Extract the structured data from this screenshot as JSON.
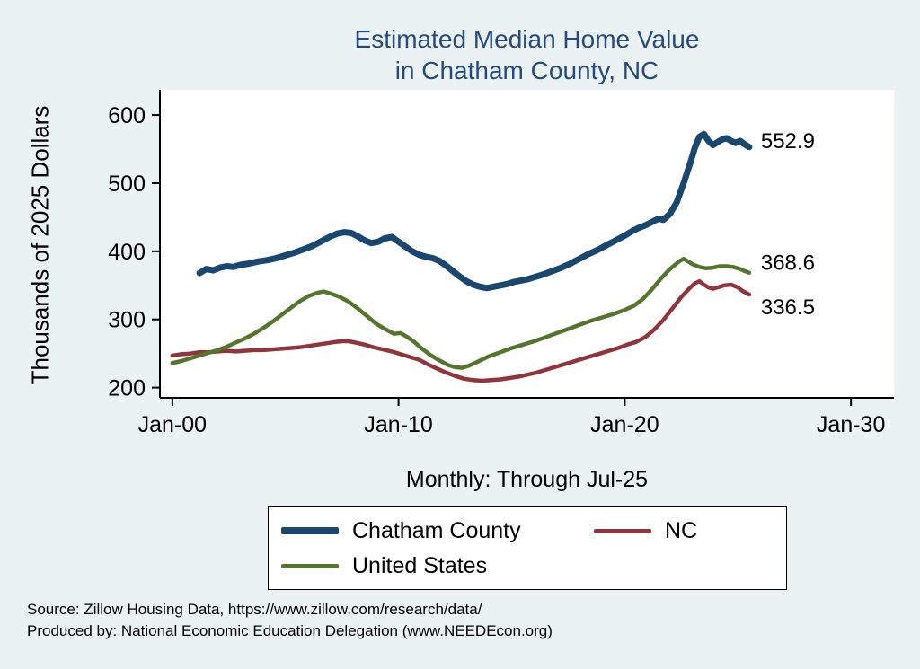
{
  "title": {
    "line1": "Estimated Median Home Value",
    "line2": "in Chatham County, NC"
  },
  "y_axis_label": "Thousands of 2025 Dollars",
  "x_axis_title": "Monthly: Through Jul-25",
  "footer": {
    "line1": "Source: Zillow Housing Data, https://www.zillow.com/research/data/",
    "line2": "Produced by: National Economic Education Delegation (www.NEEDEcon.org)"
  },
  "colors": {
    "background": "#eaf2f3",
    "plot_background": "#ffffff",
    "title": "#26497e",
    "text": "#000000",
    "chatham": "#1a476f",
    "nc": "#90353b",
    "us": "#55752f"
  },
  "legend": {
    "entries": [
      {
        "label": "Chatham County",
        "color_key": "chatham",
        "thickness": 8
      },
      {
        "label": "NC",
        "color_key": "nc",
        "thickness": 5
      },
      {
        "label": "United States",
        "color_key": "us",
        "thickness": 5
      }
    ]
  },
  "chart_data": {
    "type": "line",
    "title": "Estimated Median Home Value in Chatham County, NC",
    "xlabel": "Monthly: Through Jul-25",
    "ylabel": "Thousands of 2025 Dollars",
    "xlim": [
      1999.45,
      2031.9
    ],
    "ylim": [
      185,
      637
    ],
    "grid": false,
    "legend_position": "bottom",
    "y_ticks": [
      200,
      300,
      400,
      500,
      600
    ],
    "x_ticks": [
      {
        "value": 2000,
        "label": "Jan-00"
      },
      {
        "value": 2010,
        "label": "Jan-10"
      },
      {
        "value": 2020,
        "label": "Jan-20"
      },
      {
        "value": 2030,
        "label": "Jan-30"
      }
    ],
    "series": [
      {
        "name": "Chatham County",
        "color_key": "chatham",
        "line_width": 7,
        "end_label": "552.9",
        "end_label_dy": 1,
        "points": [
          [
            2001.2,
            368
          ],
          [
            2001.5,
            374
          ],
          [
            2001.8,
            372
          ],
          [
            2002.1,
            376
          ],
          [
            2002.4,
            378
          ],
          [
            2002.7,
            377
          ],
          [
            2003.0,
            380
          ],
          [
            2003.4,
            382
          ],
          [
            2003.8,
            385
          ],
          [
            2004.2,
            387
          ],
          [
            2004.6,
            390
          ],
          [
            2005.0,
            394
          ],
          [
            2005.4,
            398
          ],
          [
            2005.8,
            403
          ],
          [
            2006.2,
            408
          ],
          [
            2006.6,
            415
          ],
          [
            2007.0,
            422
          ],
          [
            2007.3,
            426
          ],
          [
            2007.6,
            428
          ],
          [
            2007.9,
            427
          ],
          [
            2008.2,
            422
          ],
          [
            2008.5,
            416
          ],
          [
            2008.8,
            412
          ],
          [
            2009.1,
            414
          ],
          [
            2009.4,
            419
          ],
          [
            2009.7,
            421
          ],
          [
            2010.0,
            414
          ],
          [
            2010.3,
            407
          ],
          [
            2010.6,
            400
          ],
          [
            2010.9,
            395
          ],
          [
            2011.2,
            392
          ],
          [
            2011.5,
            390
          ],
          [
            2011.8,
            386
          ],
          [
            2012.1,
            379
          ],
          [
            2012.4,
            371
          ],
          [
            2012.7,
            363
          ],
          [
            2013.0,
            356
          ],
          [
            2013.3,
            351
          ],
          [
            2013.6,
            348
          ],
          [
            2013.9,
            346
          ],
          [
            2014.2,
            348
          ],
          [
            2014.5,
            350
          ],
          [
            2014.8,
            352
          ],
          [
            2015.1,
            355
          ],
          [
            2015.4,
            357
          ],
          [
            2015.7,
            359
          ],
          [
            2016.0,
            362
          ],
          [
            2016.4,
            366
          ],
          [
            2016.8,
            371
          ],
          [
            2017.2,
            376
          ],
          [
            2017.6,
            382
          ],
          [
            2018.0,
            389
          ],
          [
            2018.4,
            396
          ],
          [
            2018.8,
            402
          ],
          [
            2019.2,
            409
          ],
          [
            2019.6,
            416
          ],
          [
            2020.0,
            423
          ],
          [
            2020.3,
            429
          ],
          [
            2020.6,
            434
          ],
          [
            2020.9,
            438
          ],
          [
            2021.2,
            443
          ],
          [
            2021.5,
            448
          ],
          [
            2021.7,
            446
          ],
          [
            2022.0,
            455
          ],
          [
            2022.3,
            472
          ],
          [
            2022.6,
            500
          ],
          [
            2022.9,
            530
          ],
          [
            2023.1,
            552
          ],
          [
            2023.3,
            568
          ],
          [
            2023.5,
            572
          ],
          [
            2023.7,
            562
          ],
          [
            2023.9,
            556
          ],
          [
            2024.1,
            560
          ],
          [
            2024.3,
            564
          ],
          [
            2024.5,
            566
          ],
          [
            2024.7,
            562
          ],
          [
            2024.9,
            559
          ],
          [
            2025.1,
            562
          ],
          [
            2025.3,
            557
          ],
          [
            2025.5,
            552.9
          ]
        ]
      },
      {
        "name": "NC",
        "color_key": "nc",
        "line_width": 4.5,
        "end_label": "336.5",
        "end_label_dy": 22,
        "points": [
          [
            2000.0,
            247
          ],
          [
            2000.4,
            249
          ],
          [
            2000.8,
            250
          ],
          [
            2001.2,
            252
          ],
          [
            2001.6,
            252
          ],
          [
            2002.0,
            253
          ],
          [
            2002.4,
            254
          ],
          [
            2002.8,
            253
          ],
          [
            2003.2,
            254
          ],
          [
            2003.6,
            255
          ],
          [
            2004.0,
            255
          ],
          [
            2004.4,
            256
          ],
          [
            2004.8,
            257
          ],
          [
            2005.2,
            258
          ],
          [
            2005.6,
            259
          ],
          [
            2006.0,
            261
          ],
          [
            2006.4,
            263
          ],
          [
            2006.8,
            265
          ],
          [
            2007.2,
            267
          ],
          [
            2007.5,
            268
          ],
          [
            2007.8,
            268
          ],
          [
            2008.1,
            266
          ],
          [
            2008.5,
            263
          ],
          [
            2008.9,
            259
          ],
          [
            2009.3,
            256
          ],
          [
            2009.7,
            253
          ],
          [
            2010.1,
            249
          ],
          [
            2010.5,
            245
          ],
          [
            2010.9,
            241
          ],
          [
            2011.3,
            234
          ],
          [
            2011.7,
            228
          ],
          [
            2012.1,
            222
          ],
          [
            2012.5,
            217
          ],
          [
            2012.9,
            213
          ],
          [
            2013.3,
            211
          ],
          [
            2013.7,
            210
          ],
          [
            2014.1,
            211
          ],
          [
            2014.5,
            212
          ],
          [
            2014.9,
            214
          ],
          [
            2015.3,
            216
          ],
          [
            2015.7,
            219
          ],
          [
            2016.1,
            222
          ],
          [
            2016.5,
            226
          ],
          [
            2016.9,
            230
          ],
          [
            2017.3,
            234
          ],
          [
            2017.7,
            238
          ],
          [
            2018.1,
            242
          ],
          [
            2018.5,
            246
          ],
          [
            2018.9,
            250
          ],
          [
            2019.3,
            254
          ],
          [
            2019.7,
            258
          ],
          [
            2020.1,
            263
          ],
          [
            2020.5,
            267
          ],
          [
            2020.9,
            274
          ],
          [
            2021.3,
            285
          ],
          [
            2021.7,
            299
          ],
          [
            2022.1,
            316
          ],
          [
            2022.5,
            333
          ],
          [
            2022.9,
            347
          ],
          [
            2023.1,
            353
          ],
          [
            2023.3,
            356
          ],
          [
            2023.5,
            351
          ],
          [
            2023.7,
            347
          ],
          [
            2023.9,
            345
          ],
          [
            2024.1,
            347
          ],
          [
            2024.4,
            350
          ],
          [
            2024.7,
            351
          ],
          [
            2025.0,
            347
          ],
          [
            2025.2,
            342
          ],
          [
            2025.5,
            336.5
          ]
        ]
      },
      {
        "name": "United States",
        "color_key": "us",
        "line_width": 4.5,
        "end_label": "368.6",
        "end_label_dy": -3,
        "points": [
          [
            2000.0,
            236
          ],
          [
            2000.4,
            239
          ],
          [
            2000.8,
            243
          ],
          [
            2001.2,
            247
          ],
          [
            2001.6,
            251
          ],
          [
            2002.0,
            255
          ],
          [
            2002.4,
            260
          ],
          [
            2002.8,
            266
          ],
          [
            2003.2,
            272
          ],
          [
            2003.6,
            279
          ],
          [
            2004.0,
            287
          ],
          [
            2004.4,
            296
          ],
          [
            2004.8,
            306
          ],
          [
            2005.2,
            316
          ],
          [
            2005.6,
            326
          ],
          [
            2006.0,
            334
          ],
          [
            2006.4,
            339
          ],
          [
            2006.7,
            341
          ],
          [
            2007.0,
            338
          ],
          [
            2007.4,
            333
          ],
          [
            2007.8,
            326
          ],
          [
            2008.2,
            316
          ],
          [
            2008.6,
            305
          ],
          [
            2009.0,
            294
          ],
          [
            2009.4,
            286
          ],
          [
            2009.8,
            279
          ],
          [
            2010.1,
            280
          ],
          [
            2010.4,
            274
          ],
          [
            2010.7,
            267
          ],
          [
            2011.0,
            258
          ],
          [
            2011.4,
            248
          ],
          [
            2011.8,
            240
          ],
          [
            2012.2,
            233
          ],
          [
            2012.5,
            230
          ],
          [
            2012.8,
            229
          ],
          [
            2013.1,
            232
          ],
          [
            2013.5,
            238
          ],
          [
            2014.0,
            246
          ],
          [
            2014.5,
            252
          ],
          [
            2015.0,
            258
          ],
          [
            2015.5,
            263
          ],
          [
            2016.0,
            268
          ],
          [
            2016.5,
            274
          ],
          [
            2017.0,
            280
          ],
          [
            2017.5,
            286
          ],
          [
            2018.0,
            292
          ],
          [
            2018.5,
            298
          ],
          [
            2019.0,
            303
          ],
          [
            2019.5,
            308
          ],
          [
            2020.0,
            314
          ],
          [
            2020.4,
            320
          ],
          [
            2020.8,
            330
          ],
          [
            2021.2,
            344
          ],
          [
            2021.6,
            360
          ],
          [
            2022.0,
            374
          ],
          [
            2022.4,
            385
          ],
          [
            2022.6,
            389
          ],
          [
            2022.8,
            385
          ],
          [
            2023.0,
            381
          ],
          [
            2023.3,
            377
          ],
          [
            2023.6,
            375
          ],
          [
            2023.9,
            376
          ],
          [
            2024.2,
            378
          ],
          [
            2024.5,
            378
          ],
          [
            2024.8,
            377
          ],
          [
            2025.1,
            374
          ],
          [
            2025.3,
            371
          ],
          [
            2025.5,
            368.6
          ]
        ]
      }
    ]
  }
}
